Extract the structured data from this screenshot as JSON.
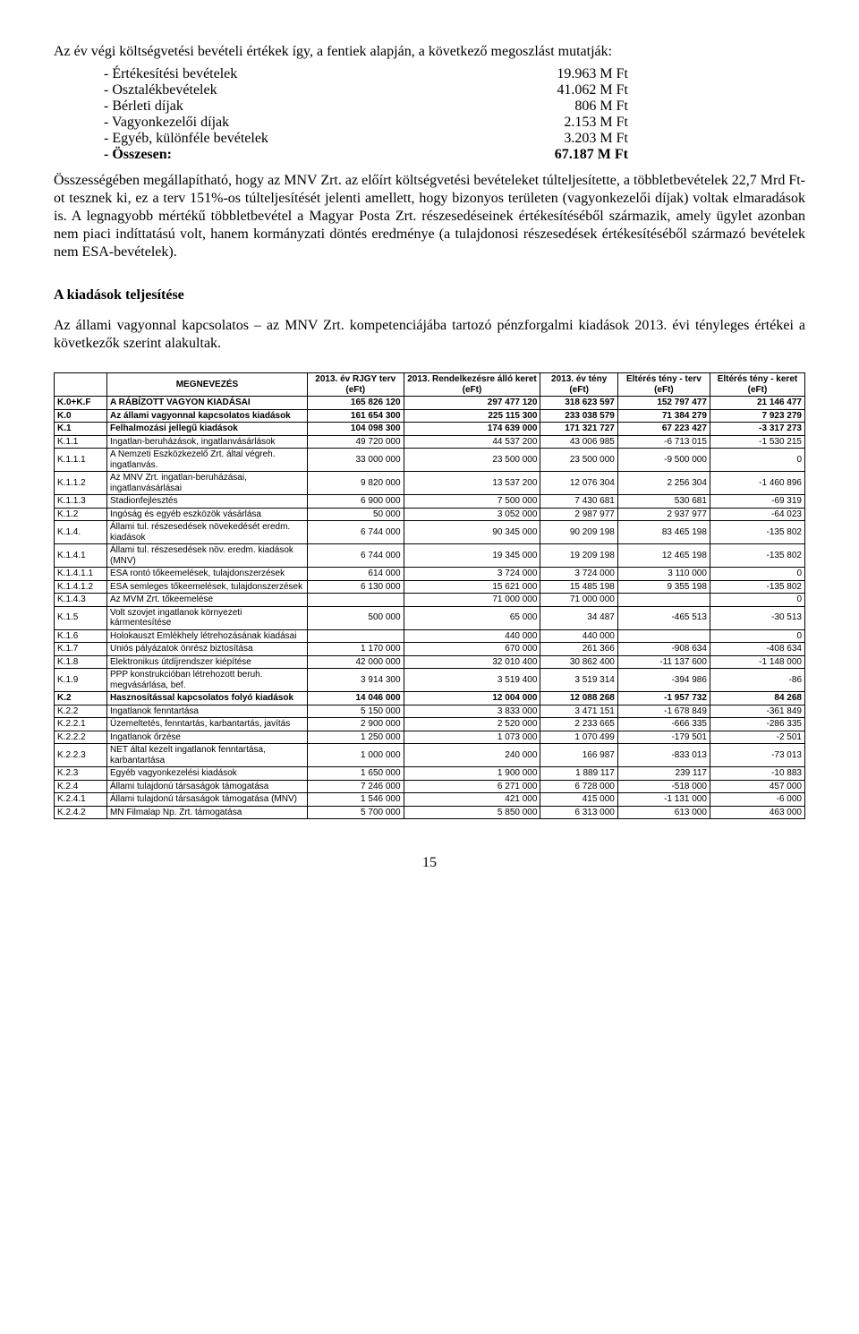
{
  "intro_para": "Az év végi költségvetési bevételi értékek így, a fentiek alapján, a következő megoszlást mutatják:",
  "summary_list": [
    {
      "label": "- Értékesítési bevételek",
      "value": "19.963 M Ft",
      "bold": false
    },
    {
      "label": "- Osztalékbevételek",
      "value": "41.062 M Ft",
      "bold": false
    },
    {
      "label": "- Bérleti díjak",
      "value": "806 M Ft",
      "bold": false
    },
    {
      "label": "- Vagyonkezelői díjak",
      "value": "2.153 M Ft",
      "bold": false
    },
    {
      "label": "- Egyéb, különféle bevételek",
      "value": "3.203 M Ft",
      "bold": false
    },
    {
      "label": "- Összesen:",
      "value": "67.187 M Ft",
      "bold": true
    }
  ],
  "para2": "Összességében megállapítható, hogy az MNV Zrt. az előírt költségvetési bevételeket túlteljesítette, a többletbevételek 22,7 Mrd Ft-ot tesznek ki, ez a terv 151%-os túlteljesítését jelenti amellett, hogy bizonyos területen (vagyonkezelői díjak) voltak elmaradások is. A legnagyobb mértékű többletbevétel a Magyar Posta Zrt. részesedéseinek értékesítéséből származik, amely ügylet azonban nem piaci indíttatású volt, hanem kormányzati döntés eredménye (a tulajdonosi részesedések értékesítéséből származó bevételek nem ESA-bevételek).",
  "section_heading": "A kiadások teljesítése",
  "para3": "Az állami vagyonnal kapcsolatos – az MNV Zrt. kompetenciájába tartozó pénzforgalmi kiadások 2013. évi tényleges értékei a következők szerint alakultak.",
  "table": {
    "columns": [
      "",
      "MEGNEVEZÉS",
      "2013. év RJGY terv (eFt)",
      "2013. Rendelkezésre álló keret (eFt)",
      "2013. év tény (eFt)",
      "Eltérés tény - terv (eFt)",
      "Eltérés tény - keret (eFt)"
    ],
    "rows": [
      {
        "bold": true,
        "cells": [
          "K.0+K.F",
          "A RÁBÍZOTT VAGYON KIADÁSAI",
          "165 826 120",
          "297 477 120",
          "318 623 597",
          "152 797 477",
          "21 146 477"
        ]
      },
      {
        "bold": true,
        "cells": [
          "K.0",
          "Az állami vagyonnal kapcsolatos kiadások",
          "161 654 300",
          "225 115 300",
          "233 038 579",
          "71 384 279",
          "7 923 279"
        ]
      },
      {
        "bold": true,
        "cells": [
          "K.1",
          "Felhalmozási jellegű kiadások",
          "104 098 300",
          "174 639 000",
          "171 321 727",
          "67 223 427",
          "-3 317 273"
        ]
      },
      {
        "bold": false,
        "cells": [
          "K.1.1",
          "Ingatlan-beruházások, ingatlanvásárlások",
          "49 720 000",
          "44 537 200",
          "43 006 985",
          "-6 713 015",
          "-1 530 215"
        ]
      },
      {
        "bold": false,
        "cells": [
          "K.1.1.1",
          "A Nemzeti Eszközkezelő Zrt. által végreh. ingatlanvás.",
          "33 000 000",
          "23 500 000",
          "23 500 000",
          "-9 500 000",
          "0"
        ]
      },
      {
        "bold": false,
        "cells": [
          "K.1.1.2",
          "Az MNV Zrt. ingatlan-beruházásai, ingatlanvásárlásai",
          "9 820 000",
          "13 537 200",
          "12 076 304",
          "2 256 304",
          "-1 460 896"
        ]
      },
      {
        "bold": false,
        "cells": [
          "K.1.1.3",
          "Stadionfejlesztés",
          "6 900 000",
          "7 500 000",
          "7 430 681",
          "530 681",
          "-69 319"
        ]
      },
      {
        "bold": false,
        "cells": [
          "K.1.2",
          "Ingóság és egyéb eszközök vásárlása",
          "50 000",
          "3 052 000",
          "2 987 977",
          "2 937 977",
          "-64 023"
        ]
      },
      {
        "bold": false,
        "cells": [
          "K.1.4.",
          "Állami tul. részesedések növekedését eredm. kiadások",
          "6 744 000",
          "90 345 000",
          "90 209 198",
          "83 465 198",
          "-135 802"
        ]
      },
      {
        "bold": false,
        "cells": [
          "K.1.4.1",
          "Állami tul. részesedések növ. eredm. kiadások (MNV)",
          "6 744 000",
          "19 345 000",
          "19 209 198",
          "12 465 198",
          "-135 802"
        ]
      },
      {
        "bold": false,
        "cells": [
          "K.1.4.1.1",
          "ESA rontó tőkeemelések, tulajdonszerzések",
          "614 000",
          "3 724 000",
          "3 724 000",
          "3 110 000",
          "0"
        ]
      },
      {
        "bold": false,
        "cells": [
          "K.1.4.1.2",
          "ESA semleges tőkeemelések, tulajdonszerzések",
          "6 130 000",
          "15 621 000",
          "15 485 198",
          "9 355 198",
          "-135 802"
        ]
      },
      {
        "bold": false,
        "cells": [
          "K.1.4.3",
          "Az MVM Zrt. tőkeemelése",
          "",
          "71 000 000",
          "71 000 000",
          "",
          "0"
        ]
      },
      {
        "bold": false,
        "cells": [
          "K.1.5",
          "Volt szovjet ingatlanok környezeti kármentesítése",
          "500 000",
          "65 000",
          "34 487",
          "-465 513",
          "-30 513"
        ]
      },
      {
        "bold": false,
        "cells": [
          "K.1.6",
          "Holokauszt Emlékhely létrehozásának kiadásai",
          "",
          "440 000",
          "440 000",
          "",
          "0"
        ]
      },
      {
        "bold": false,
        "cells": [
          "K.1.7",
          "Uniós pályázatok önrész biztosítása",
          "1 170 000",
          "670 000",
          "261 366",
          "-908 634",
          "-408 634"
        ]
      },
      {
        "bold": false,
        "cells": [
          "K.1.8",
          "Elektronikus útdíjrendszer kiépítése",
          "42 000 000",
          "32 010 400",
          "30 862 400",
          "-11 137 600",
          "-1 148 000"
        ]
      },
      {
        "bold": false,
        "cells": [
          "K.1.9",
          "PPP konstrukcióban létrehozott beruh. megvásárlása, bef.",
          "3 914 300",
          "3 519 400",
          "3 519 314",
          "-394 986",
          "-86"
        ]
      },
      {
        "bold": true,
        "cells": [
          "K.2",
          "Hasznosítással kapcsolatos folyó kiadások",
          "14 046 000",
          "12 004 000",
          "12 088 268",
          "-1 957 732",
          "84 268"
        ]
      },
      {
        "bold": false,
        "cells": [
          "K.2.2",
          "Ingatlanok fenntartása",
          "5 150 000",
          "3 833 000",
          "3 471 151",
          "-1 678 849",
          "-361 849"
        ]
      },
      {
        "bold": false,
        "cells": [
          "K.2.2.1",
          "Üzemeltetés, fenntartás, karbantartás, javítás",
          "2 900 000",
          "2 520 000",
          "2 233 665",
          "-666 335",
          "-286 335"
        ]
      },
      {
        "bold": false,
        "cells": [
          "K.2.2.2",
          "Ingatlanok őrzése",
          "1 250 000",
          "1 073 000",
          "1 070 499",
          "-179 501",
          "-2 501"
        ]
      },
      {
        "bold": false,
        "cells": [
          "K.2.2.3",
          "NET által kezelt ingatlanok fenntartása, karbantartása",
          "1 000 000",
          "240 000",
          "166 987",
          "-833 013",
          "-73 013"
        ]
      },
      {
        "bold": false,
        "cells": [
          "K.2.3",
          "Egyéb vagyonkezelési kiadások",
          "1 650 000",
          "1 900 000",
          "1 889 117",
          "239 117",
          "-10 883"
        ]
      },
      {
        "bold": false,
        "cells": [
          "K.2.4",
          "Állami tulajdonú társaságok támogatása",
          "7 246 000",
          "6 271 000",
          "6 728 000",
          "-518 000",
          "457 000"
        ]
      },
      {
        "bold": false,
        "cells": [
          "K.2.4.1",
          "Állami tulajdonú társaságok támogatása (MNV)",
          "1 546 000",
          "421 000",
          "415 000",
          "-1 131 000",
          "-6 000"
        ]
      },
      {
        "bold": false,
        "cells": [
          "K.2.4.2",
          "MN Filmalap Np. Zrt. támogatása",
          "5 700 000",
          "5 850 000",
          "6 313 000",
          "613 000",
          "463 000"
        ]
      }
    ]
  },
  "page_number": "15"
}
